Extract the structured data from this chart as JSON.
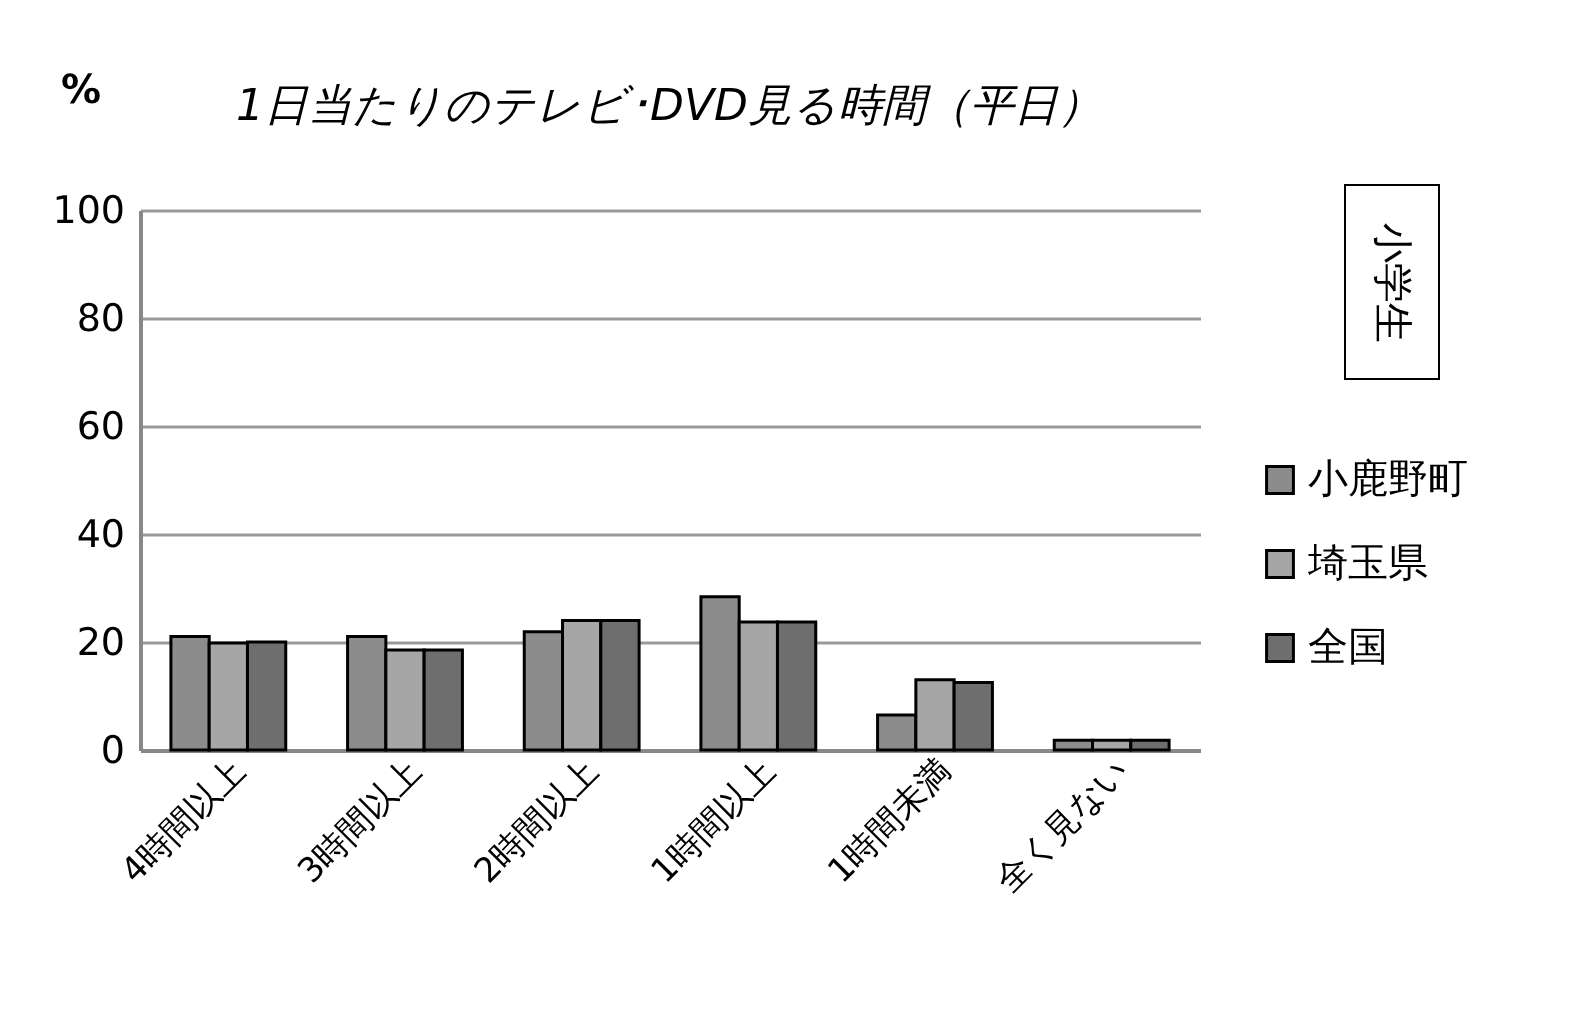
{
  "chart_data": {
    "type": "bar",
    "title": "1日当たりのテレビ･DVD見る時間（平日）",
    "ylabel": "%",
    "annotations": [
      "小学生"
    ],
    "categories": [
      "4時間以上",
      "3時間以上",
      "2時間以上",
      "1時間以上",
      "1時間未満",
      "全く見ない"
    ],
    "series": [
      {
        "name": "小鹿野町",
        "color": "#8c8c8c",
        "values": [
          21,
          21,
          21.9,
          28.4,
          6.5,
          1.8
        ]
      },
      {
        "name": "埼玉県",
        "color": "#a6a6a6",
        "values": [
          19.8,
          18.5,
          24,
          23.7,
          13,
          1.8
        ]
      },
      {
        "name": "全国",
        "color": "#6e6e6e",
        "values": [
          20,
          18.5,
          24,
          23.7,
          12.5,
          1.8
        ]
      }
    ],
    "ylim": [
      0,
      100
    ],
    "yticks": [
      0,
      20,
      40,
      60,
      80,
      100
    ],
    "grid": "y",
    "legend": "right"
  }
}
